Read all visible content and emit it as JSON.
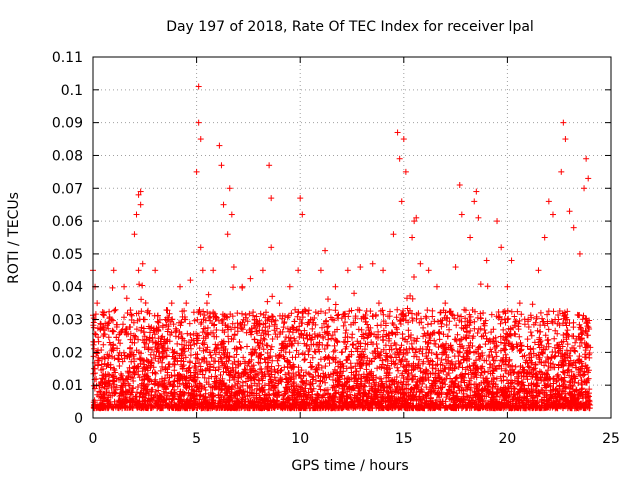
{
  "chart_data": {
    "type": "scatter",
    "title": "Day 197 of 2018, Rate Of TEC Index for receiver lpal",
    "xlabel": "GPS time / hours",
    "ylabel": "ROTI / TECUs",
    "xlim": [
      0,
      25
    ],
    "ylim": [
      0,
      0.11
    ],
    "x_ticks": [
      "0",
      "5",
      "10",
      "15",
      "20",
      "25"
    ],
    "y_ticks": [
      "0",
      "0.01",
      "0.02",
      "0.03",
      "0.04",
      "0.05",
      "0.06",
      "0.07",
      "0.08",
      "0.09",
      "0.1",
      "0.11"
    ],
    "x_tick_values": [
      0,
      5,
      10,
      15,
      20,
      25
    ],
    "y_tick_values": [
      0,
      0.01,
      0.02,
      0.03,
      0.04,
      0.05,
      0.06,
      0.07,
      0.08,
      0.09,
      0.1,
      0.11
    ],
    "grid": true,
    "marker": "+",
    "color": "#ff0000",
    "series": [
      {
        "x": [
          0.0,
          0.1,
          0.1,
          0.2,
          0.2,
          0.3,
          0.5,
          0.9,
          1.0,
          1.5,
          2.0,
          2.1,
          2.2,
          2.2,
          2.3,
          2.3,
          2.4,
          2.5,
          3.0,
          3.5,
          3.8,
          4.2,
          4.5,
          4.7,
          5.0,
          5.1,
          5.1,
          5.2,
          5.2,
          5.3,
          5.5,
          5.8,
          6.1,
          6.2,
          6.3,
          6.5,
          6.6,
          6.7,
          6.8,
          7.2,
          7.8,
          8.2,
          8.5,
          8.6,
          8.6,
          9.0,
          9.5,
          9.9,
          10.0,
          10.1,
          10.5,
          11.0,
          11.2,
          11.7,
          12.3,
          12.6,
          12.9,
          13.5,
          13.8,
          14.0,
          14.5,
          14.7,
          14.8,
          14.9,
          15.0,
          15.1,
          15.4,
          15.5,
          15.6,
          15.8,
          16.2,
          16.6,
          17.0,
          17.5,
          17.7,
          17.8,
          18.2,
          18.4,
          18.5,
          18.6,
          19.0,
          19.5,
          19.7,
          20.0,
          20.2,
          20.6,
          21.0,
          21.5,
          21.8,
          22.0,
          22.2,
          22.6,
          22.7,
          22.8,
          23.0,
          23.2,
          23.5,
          23.7,
          23.8,
          23.9
        ],
        "y": [
          0.045,
          0.04,
          0.03,
          0.02,
          0.035,
          0.01,
          0.025,
          0.03,
          0.045,
          0.04,
          0.056,
          0.062,
          0.068,
          0.045,
          0.069,
          0.065,
          0.047,
          0.03,
          0.045,
          0.03,
          0.035,
          0.04,
          0.035,
          0.042,
          0.075,
          0.09,
          0.101,
          0.085,
          0.052,
          0.045,
          0.035,
          0.045,
          0.083,
          0.077,
          0.065,
          0.056,
          0.07,
          0.062,
          0.046,
          0.04,
          0.03,
          0.045,
          0.077,
          0.067,
          0.052,
          0.035,
          0.04,
          0.045,
          0.067,
          0.062,
          0.03,
          0.045,
          0.051,
          0.04,
          0.045,
          0.038,
          0.046,
          0.047,
          0.035,
          0.045,
          0.056,
          0.087,
          0.079,
          0.066,
          0.085,
          0.075,
          0.055,
          0.06,
          0.061,
          0.047,
          0.045,
          0.04,
          0.035,
          0.046,
          0.071,
          0.062,
          0.055,
          0.066,
          0.069,
          0.061,
          0.048,
          0.06,
          0.052,
          0.04,
          0.048,
          0.035,
          0.03,
          0.045,
          0.055,
          0.066,
          0.062,
          0.075,
          0.09,
          0.085,
          0.063,
          0.058,
          0.05,
          0.07,
          0.079,
          0.073
        ]
      }
    ]
  }
}
